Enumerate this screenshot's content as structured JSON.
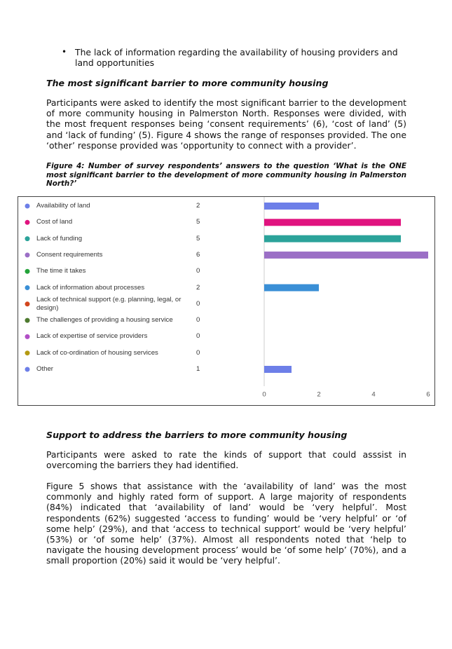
{
  "bullet": "The lack of information regarding the availability of housing providers and land opportunities",
  "section1": {
    "heading": "The most significant barrier to more community housing",
    "paragraph": "Participants were asked to identify the most significant barrier to the development of more community housing in Palmerston North. Responses were divided, with the most frequent responses being ‘consent requirements’ (6), ‘cost of land’ (5) and ‘lack of funding’ (5). Figure 4 shows the range of responses provided. The one ‘other’ response provided was ‘opportunity to connect with a provider’.",
    "caption": "Figure 4: Number of survey respondents’ answers to the question ‘What is the ONE most significant barrier to the development of more community housing in Palmerston North?’"
  },
  "chart_data": {
    "type": "bar",
    "categories": [
      "Availability of land",
      "Cost of land",
      "Lack of funding",
      "Consent requirements",
      "The time it takes",
      "Lack of information about processes",
      "Lack of technical support (e.g. planning, legal, or design)",
      "The challenges of providing a housing service",
      "Lack of expertise of service providers",
      "Lack of co-ordination of housing services",
      "Other"
    ],
    "values": [
      2,
      5,
      5,
      6,
      0,
      2,
      0,
      0,
      0,
      0,
      1
    ],
    "colors": [
      "#6d7fe8",
      "#e0137f",
      "#2ba39a",
      "#9b6fc6",
      "#23a33a",
      "#3a8fd6",
      "#d2461d",
      "#4e7a2f",
      "#b14fc6",
      "#b49a12",
      "#6d7fe8"
    ],
    "xlim": [
      0,
      6
    ],
    "xticks": [
      0,
      2,
      4,
      6
    ],
    "grid": false
  },
  "section2": {
    "heading": "Support to address the barriers to more community housing",
    "paragraphs": [
      "Participants were asked to rate the kinds of support that could asssist in overcoming the barriers they had identified.",
      "Figure 5 shows that assistance with the ‘availability of land’ was the most commonly and highly rated form of support. A large majority of respondents (84%) indicated that ‘availability of land’ would be ‘very helpful’. Most respondents (62%) suggested ‘access to funding’ would be ‘very helpful’ or ‘of some help’ (29%), and that ‘access to technical support’ would be ‘very helpful’ (53%) or ‘of some help’ (37%). Almost all respondents noted that ‘help to navigate the housing development process’ would be ‘of some help’ (70%), and a small proportion (20%) said it would be ‘very helpful’."
    ]
  }
}
